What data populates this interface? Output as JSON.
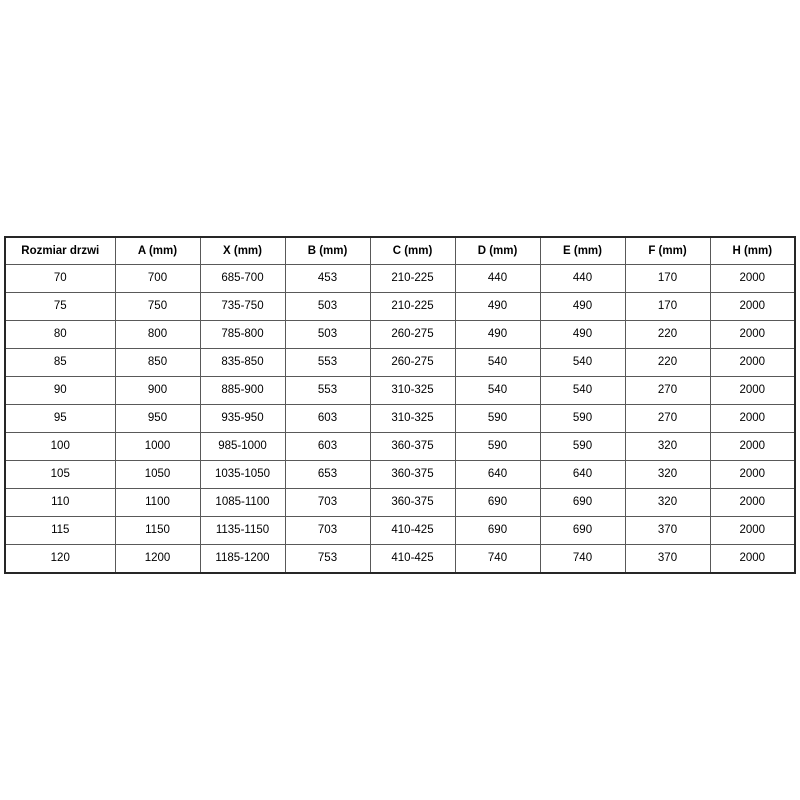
{
  "colors": {
    "table_border_outer": "#262626",
    "table_border_inner": "#595959",
    "text": "#000000",
    "background": "#ffffff"
  },
  "table": {
    "headers": [
      "Rozmiar drzwi",
      "A (mm)",
      "X (mm)",
      "B (mm)",
      "C (mm)",
      "D (mm)",
      "E (mm)",
      "F (mm)",
      "H (mm)"
    ],
    "rows": [
      [
        "70",
        "700",
        "685-700",
        "453",
        "210-225",
        "440",
        "440",
        "170",
        "2000"
      ],
      [
        "75",
        "750",
        "735-750",
        "503",
        "210-225",
        "490",
        "490",
        "170",
        "2000"
      ],
      [
        "80",
        "800",
        "785-800",
        "503",
        "260-275",
        "490",
        "490",
        "220",
        "2000"
      ],
      [
        "85",
        "850",
        "835-850",
        "553",
        "260-275",
        "540",
        "540",
        "220",
        "2000"
      ],
      [
        "90",
        "900",
        "885-900",
        "553",
        "310-325",
        "540",
        "540",
        "270",
        "2000"
      ],
      [
        "95",
        "950",
        "935-950",
        "603",
        "310-325",
        "590",
        "590",
        "270",
        "2000"
      ],
      [
        "100",
        "1000",
        "985-1000",
        "603",
        "360-375",
        "590",
        "590",
        "320",
        "2000"
      ],
      [
        "105",
        "1050",
        "1035-1050",
        "653",
        "360-375",
        "640",
        "640",
        "320",
        "2000"
      ],
      [
        "110",
        "1100",
        "1085-1100",
        "703",
        "360-375",
        "690",
        "690",
        "320",
        "2000"
      ],
      [
        "115",
        "1150",
        "1135-1150",
        "703",
        "410-425",
        "690",
        "690",
        "370",
        "2000"
      ],
      [
        "120",
        "1200",
        "1185-1200",
        "753",
        "410-425",
        "740",
        "740",
        "370",
        "2000"
      ]
    ]
  }
}
